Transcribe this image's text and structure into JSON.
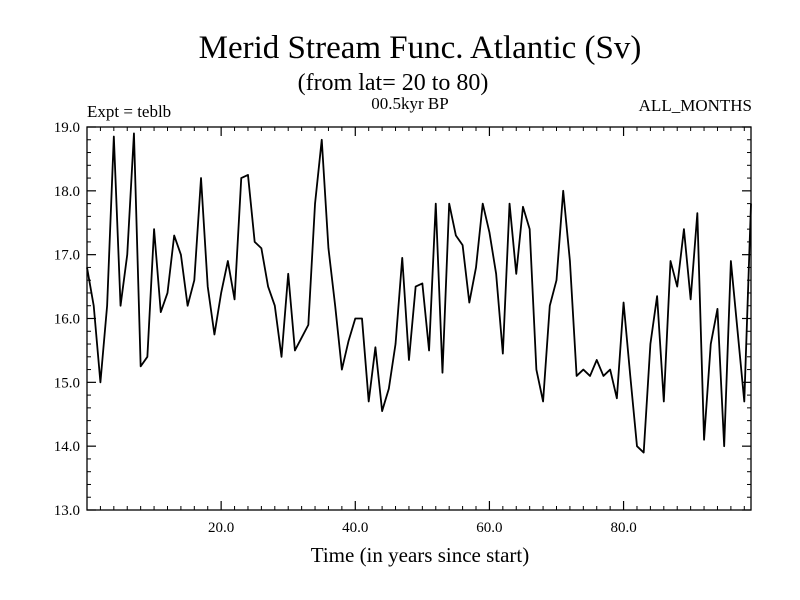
{
  "chart_data": {
    "type": "line",
    "title": "Merid Stream Func. Atlantic (Sv)",
    "subtitle": "(from lat= 20 to 80)",
    "experiment": "Expt = teblb",
    "period": "00.5kyr BP",
    "months": "ALL_MONTHS",
    "xlabel": "Time (in years since start)",
    "ylabel": "",
    "xlim": [
      0,
      99
    ],
    "ylim": [
      13.0,
      19.0
    ],
    "xticks": [
      20.0,
      40.0,
      60.0,
      80.0
    ],
    "xtick_labels": [
      "20.0",
      "40.0",
      "60.0",
      "80.0"
    ],
    "yticks": [
      13.0,
      14.0,
      15.0,
      16.0,
      17.0,
      18.0,
      19.0
    ],
    "ytick_labels": [
      "13.0",
      "14.0",
      "15.0",
      "16.0",
      "17.0",
      "18.0",
      "19.0"
    ],
    "series": [
      {
        "name": "Merid Stream Func. Atlantic",
        "color": "#000000",
        "x": [
          0,
          1,
          2,
          3,
          4,
          5,
          6,
          7,
          8,
          9,
          10,
          11,
          12,
          13,
          14,
          15,
          16,
          17,
          18,
          19,
          20,
          21,
          22,
          23,
          24,
          25,
          26,
          27,
          28,
          29,
          30,
          31,
          32,
          33,
          34,
          35,
          36,
          37,
          38,
          39,
          40,
          41,
          42,
          43,
          44,
          45,
          46,
          47,
          48,
          49,
          50,
          51,
          52,
          53,
          54,
          55,
          56,
          57,
          58,
          59,
          60,
          61,
          62,
          63,
          64,
          65,
          66,
          67,
          68,
          69,
          70,
          71,
          72,
          73,
          74,
          75,
          76,
          77,
          78,
          79,
          80,
          81,
          82,
          83,
          84,
          85,
          86,
          87,
          88,
          89,
          90,
          91,
          92,
          93,
          94,
          95,
          96,
          97,
          98,
          99
        ],
        "values": [
          16.8,
          16.2,
          15.0,
          16.2,
          18.85,
          16.2,
          17.0,
          18.9,
          15.25,
          15.4,
          17.4,
          16.1,
          16.4,
          17.3,
          17.0,
          16.2,
          16.6,
          18.2,
          16.5,
          15.75,
          16.4,
          16.9,
          16.3,
          18.2,
          18.25,
          17.2,
          17.1,
          16.5,
          16.2,
          15.4,
          16.7,
          15.5,
          15.7,
          15.9,
          17.8,
          18.8,
          17.1,
          16.2,
          15.2,
          15.65,
          16.0,
          16.0,
          14.7,
          15.55,
          14.55,
          14.9,
          15.6,
          16.95,
          15.35,
          16.5,
          16.55,
          15.5,
          17.8,
          15.15,
          17.8,
          17.3,
          17.15,
          16.25,
          16.8,
          17.8,
          17.35,
          16.7,
          15.45,
          17.8,
          16.7,
          17.75,
          17.4,
          15.2,
          14.7,
          16.2,
          16.6,
          18.0,
          16.9,
          15.1,
          15.2,
          15.1,
          15.35,
          15.1,
          15.2,
          14.75,
          16.25,
          15.1,
          14.0,
          13.9,
          15.6,
          16.35,
          14.7,
          16.9,
          16.5,
          17.4,
          16.3,
          17.65,
          14.1,
          15.6,
          16.15,
          14.0,
          16.9,
          15.8,
          14.7,
          17.8
        ]
      }
    ]
  }
}
